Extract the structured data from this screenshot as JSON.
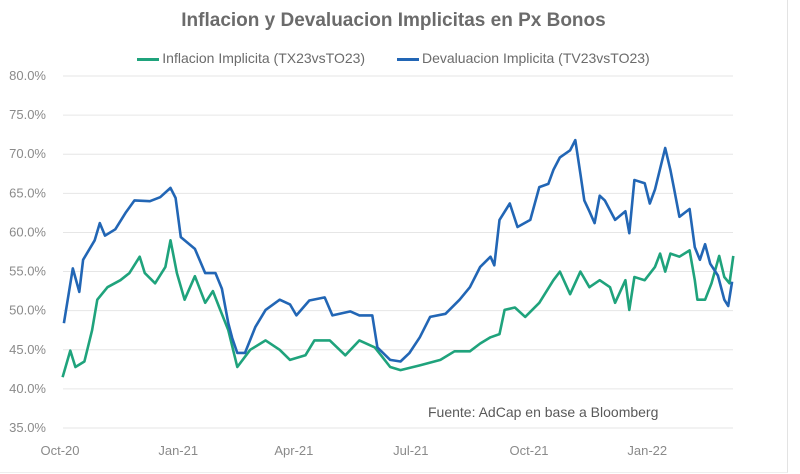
{
  "chart_data": {
    "type": "line",
    "title": "Inflacion y Devaluacion Implicitas en Px Bonos",
    "xlabel": "",
    "ylabel": "",
    "ylim": [
      0.35,
      0.8
    ],
    "y_ticks": [
      "35.0%",
      "40.0%",
      "45.0%",
      "50.0%",
      "55.0%",
      "60.0%",
      "65.0%",
      "70.0%",
      "75.0%",
      "80.0%"
    ],
    "x_ticks": [
      {
        "label": "Oct-20",
        "date": "2020-10-01"
      },
      {
        "label": "Jan-21",
        "date": "2021-01-01"
      },
      {
        "label": "Apr-21",
        "date": "2021-04-01"
      },
      {
        "label": "Jul-21",
        "date": "2021-07-01"
      },
      {
        "label": "Oct-21",
        "date": "2021-10-01"
      },
      {
        "label": "Jan-22",
        "date": "2022-01-01"
      }
    ],
    "grid": true,
    "legend_position": "top",
    "annotation": "Fuente: AdCap en base a Bloomberg",
    "series": [
      {
        "name": "Inflacion Implicita (TX23vsTO23)",
        "color": "#1fa37c",
        "points": [
          [
            "2020-10-03",
            41.5
          ],
          [
            "2020-10-09",
            44.9
          ],
          [
            "2020-10-13",
            42.8
          ],
          [
            "2020-10-20",
            43.5
          ],
          [
            "2020-10-26",
            47.5
          ],
          [
            "2020-10-30",
            51.4
          ],
          [
            "2020-11-07",
            53.0
          ],
          [
            "2020-11-17",
            53.9
          ],
          [
            "2020-11-24",
            54.8
          ],
          [
            "2020-12-02",
            56.9
          ],
          [
            "2020-12-06",
            54.8
          ],
          [
            "2020-12-14",
            53.5
          ],
          [
            "2020-12-22",
            55.6
          ],
          [
            "2020-12-26",
            59.0
          ],
          [
            "2020-12-31",
            54.8
          ],
          [
            "2021-01-06",
            51.4
          ],
          [
            "2021-01-14",
            54.4
          ],
          [
            "2021-01-22",
            51.0
          ],
          [
            "2021-01-28",
            52.5
          ],
          [
            "2021-02-02",
            50.4
          ],
          [
            "2021-02-09",
            47.5
          ],
          [
            "2021-02-16",
            42.8
          ],
          [
            "2021-02-26",
            45.0
          ],
          [
            "2021-03-10",
            46.2
          ],
          [
            "2021-03-21",
            45.0
          ],
          [
            "2021-03-29",
            43.7
          ],
          [
            "2021-04-10",
            44.3
          ],
          [
            "2021-04-17",
            46.2
          ],
          [
            "2021-04-29",
            46.2
          ],
          [
            "2021-05-11",
            44.3
          ],
          [
            "2021-05-22",
            46.2
          ],
          [
            "2021-06-03",
            45.3
          ],
          [
            "2021-06-15",
            42.8
          ],
          [
            "2021-06-23",
            42.4
          ],
          [
            "2021-07-08",
            43.0
          ],
          [
            "2021-07-24",
            43.7
          ],
          [
            "2021-08-04",
            44.8
          ],
          [
            "2021-08-16",
            44.8
          ],
          [
            "2021-08-24",
            45.8
          ],
          [
            "2021-09-01",
            46.6
          ],
          [
            "2021-09-08",
            47.0
          ],
          [
            "2021-09-12",
            50.1
          ],
          [
            "2021-09-20",
            50.4
          ],
          [
            "2021-09-28",
            49.2
          ],
          [
            "2021-10-09",
            51.0
          ],
          [
            "2021-10-20",
            53.9
          ],
          [
            "2021-10-25",
            55.0
          ],
          [
            "2021-11-02",
            52.1
          ],
          [
            "2021-11-10",
            55.0
          ],
          [
            "2021-11-17",
            53.0
          ],
          [
            "2021-11-25",
            53.9
          ],
          [
            "2021-12-03",
            53.0
          ],
          [
            "2021-12-07",
            51.0
          ],
          [
            "2021-12-15",
            53.9
          ],
          [
            "2021-12-18",
            50.1
          ],
          [
            "2021-12-22",
            54.3
          ],
          [
            "2021-12-30",
            53.9
          ],
          [
            "2022-01-07",
            55.6
          ],
          [
            "2022-01-11",
            57.3
          ],
          [
            "2022-01-15",
            55.0
          ],
          [
            "2022-01-19",
            57.3
          ],
          [
            "2022-01-26",
            56.9
          ],
          [
            "2022-02-03",
            57.7
          ],
          [
            "2022-02-07",
            53.9
          ],
          [
            "2022-02-09",
            51.4
          ],
          [
            "2022-02-15",
            51.4
          ],
          [
            "2022-02-20",
            53.5
          ],
          [
            "2022-02-26",
            57.0
          ],
          [
            "2022-03-02",
            54.3
          ],
          [
            "2022-03-06",
            53.5
          ],
          [
            "2022-03-09",
            57.0
          ]
        ]
      },
      {
        "name": "Devaluacion Implicita (TV23vsTO23)",
        "color": "#2266b5",
        "points": [
          [
            "2020-10-04",
            48.4
          ],
          [
            "2020-10-11",
            55.4
          ],
          [
            "2020-10-16",
            52.4
          ],
          [
            "2020-10-19",
            56.5
          ],
          [
            "2020-10-28",
            59.0
          ],
          [
            "2020-11-01",
            61.2
          ],
          [
            "2020-11-05",
            59.6
          ],
          [
            "2020-11-13",
            60.4
          ],
          [
            "2020-11-21",
            62.5
          ],
          [
            "2020-11-28",
            64.1
          ],
          [
            "2020-12-10",
            64.0
          ],
          [
            "2020-12-18",
            64.5
          ],
          [
            "2020-12-26",
            65.7
          ],
          [
            "2020-12-30",
            64.4
          ],
          [
            "2021-01-03",
            59.4
          ],
          [
            "2021-01-14",
            57.9
          ],
          [
            "2021-01-22",
            54.8
          ],
          [
            "2021-01-30",
            54.8
          ],
          [
            "2021-02-04",
            52.8
          ],
          [
            "2021-02-09",
            48.4
          ],
          [
            "2021-02-12",
            46.5
          ],
          [
            "2021-02-16",
            44.6
          ],
          [
            "2021-02-22",
            44.6
          ],
          [
            "2021-03-02",
            47.9
          ],
          [
            "2021-03-10",
            50.1
          ],
          [
            "2021-03-21",
            51.4
          ],
          [
            "2021-03-29",
            50.8
          ],
          [
            "2021-04-03",
            49.4
          ],
          [
            "2021-04-13",
            51.3
          ],
          [
            "2021-04-25",
            51.7
          ],
          [
            "2021-05-01",
            49.4
          ],
          [
            "2021-05-15",
            49.9
          ],
          [
            "2021-05-22",
            49.4
          ],
          [
            "2021-06-01",
            49.4
          ],
          [
            "2021-06-05",
            45.3
          ],
          [
            "2021-06-15",
            43.7
          ],
          [
            "2021-06-23",
            43.5
          ],
          [
            "2021-06-30",
            44.6
          ],
          [
            "2021-07-08",
            46.6
          ],
          [
            "2021-07-16",
            49.2
          ],
          [
            "2021-07-28",
            49.6
          ],
          [
            "2021-08-08",
            51.4
          ],
          [
            "2021-08-16",
            53.0
          ],
          [
            "2021-08-24",
            55.6
          ],
          [
            "2021-09-01",
            56.9
          ],
          [
            "2021-09-04",
            55.8
          ],
          [
            "2021-09-08",
            61.6
          ],
          [
            "2021-09-16",
            63.7
          ],
          [
            "2021-09-22",
            60.7
          ],
          [
            "2021-10-02",
            61.6
          ],
          [
            "2021-10-09",
            65.8
          ],
          [
            "2021-10-16",
            66.2
          ],
          [
            "2021-10-20",
            68.0
          ],
          [
            "2021-10-25",
            69.6
          ],
          [
            "2021-11-02",
            70.5
          ],
          [
            "2021-11-06",
            71.8
          ],
          [
            "2021-11-10",
            67.5
          ],
          [
            "2021-11-13",
            64.1
          ],
          [
            "2021-11-17",
            62.7
          ],
          [
            "2021-11-21",
            61.2
          ],
          [
            "2021-11-25",
            64.7
          ],
          [
            "2021-11-29",
            64.1
          ],
          [
            "2021-12-07",
            61.6
          ],
          [
            "2021-12-15",
            62.7
          ],
          [
            "2021-12-18",
            59.9
          ],
          [
            "2021-12-22",
            66.7
          ],
          [
            "2021-12-30",
            66.3
          ],
          [
            "2022-01-03",
            63.7
          ],
          [
            "2022-01-07",
            65.5
          ],
          [
            "2022-01-15",
            70.8
          ],
          [
            "2022-01-19",
            68.0
          ],
          [
            "2022-01-22",
            65.5
          ],
          [
            "2022-01-26",
            62.0
          ],
          [
            "2022-02-03",
            63.0
          ],
          [
            "2022-02-07",
            58.1
          ],
          [
            "2022-02-11",
            56.5
          ],
          [
            "2022-02-15",
            58.5
          ],
          [
            "2022-02-19",
            56.0
          ],
          [
            "2022-02-25",
            54.5
          ],
          [
            "2022-03-02",
            51.4
          ],
          [
            "2022-03-05",
            50.6
          ],
          [
            "2022-03-08",
            53.7
          ]
        ]
      }
    ]
  }
}
